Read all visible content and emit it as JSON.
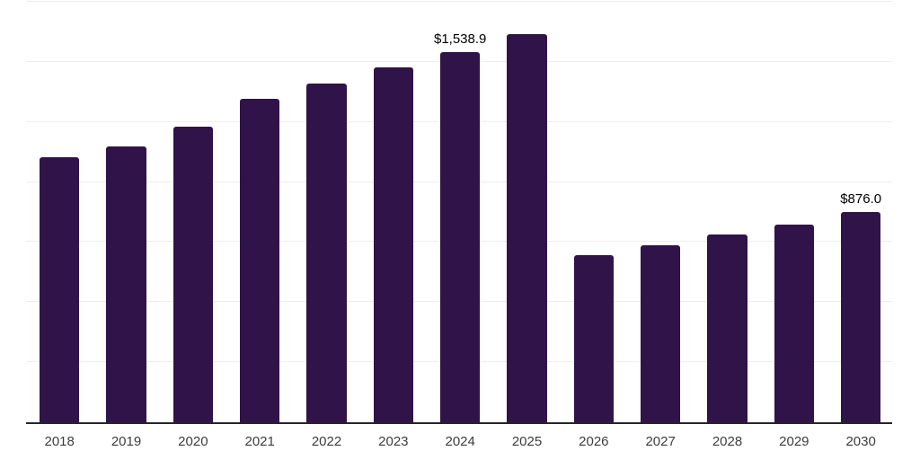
{
  "chart_data": {
    "type": "bar",
    "title": "",
    "xlabel": "",
    "ylabel": "",
    "categories": [
      "2018",
      "2019",
      "2020",
      "2021",
      "2022",
      "2023",
      "2024",
      "2025",
      "2026",
      "2027",
      "2028",
      "2029",
      "2030"
    ],
    "values": [
      1103,
      1149,
      1231,
      1345,
      1409,
      1476,
      1538.9,
      1616,
      697,
      738,
      781,
      824,
      876.0
    ],
    "value_labels": [
      "",
      "",
      "",
      "",
      "",
      "",
      "$1,538.9",
      "",
      "",
      "",
      "",
      "",
      "$876.0"
    ],
    "ylim": [
      0,
      1750
    ],
    "gridline_step": 250,
    "grid": "horizontal-only",
    "legend": "none",
    "colors": {
      "bar": "#301349",
      "gridline": "#eeeeee",
      "axis_line": "#262626",
      "tick_label": "#3d3d3d",
      "value_label": "#000000",
      "background": "#ffffff"
    }
  }
}
